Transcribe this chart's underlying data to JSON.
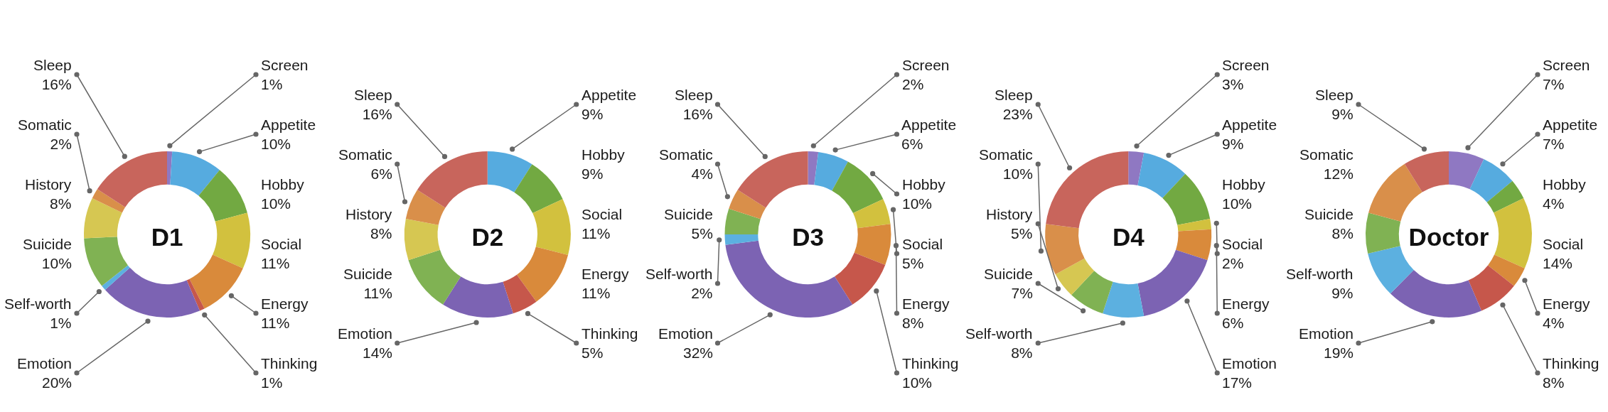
{
  "chart_data": [
    {
      "type": "donut",
      "title": "D1",
      "categories": [
        "Screen",
        "Appetite",
        "Hobby",
        "Social",
        "Energy",
        "Thinking",
        "Emotion",
        "Self-worth",
        "Suicide",
        "History",
        "Somatic",
        "Sleep"
      ],
      "values": [
        1,
        10,
        10,
        11,
        11,
        1,
        20,
        1,
        10,
        8,
        2,
        16
      ],
      "value_labels": [
        "1%",
        "10%",
        "10%",
        "11%",
        "11%",
        "1%",
        "20%",
        "1%",
        "10%",
        "8%",
        "2%",
        "16%"
      ],
      "colors": [
        "#8f78c2",
        "#56abdf",
        "#72a942",
        "#d2c13e",
        "#d98a3b",
        "#c6574b",
        "#7c63b3",
        "#5cb0e0",
        "#80b253",
        "#d6c752",
        "#d98f4a",
        "#c8655c"
      ]
    },
    {
      "type": "donut",
      "title": "D2",
      "categories": [
        "Appetite",
        "Hobby",
        "Social",
        "Energy",
        "Thinking",
        "Emotion",
        "Suicide",
        "History",
        "Somatic",
        "Sleep"
      ],
      "values": [
        9,
        9,
        11,
        11,
        5,
        14,
        11,
        8,
        6,
        16
      ],
      "value_labels": [
        "9%",
        "9%",
        "11%",
        "11%",
        "5%",
        "14%",
        "11%",
        "8%",
        "6%",
        "16%"
      ],
      "colors": [
        "#56abdf",
        "#72a942",
        "#d2c13e",
        "#d98a3b",
        "#c6574b",
        "#7c63b3",
        "#80b253",
        "#d6c752",
        "#d98f4a",
        "#c8655c"
      ]
    },
    {
      "type": "donut",
      "title": "D3",
      "categories": [
        "Screen",
        "Appetite",
        "Hobby",
        "Social",
        "Energy",
        "Thinking",
        "Emotion",
        "Self-worth",
        "Suicide",
        "Somatic",
        "Sleep"
      ],
      "values": [
        2,
        6,
        10,
        5,
        8,
        10,
        32,
        2,
        5,
        4,
        16
      ],
      "value_labels": [
        "2%",
        "6%",
        "10%",
        "5%",
        "8%",
        "10%",
        "32%",
        "2%",
        "5%",
        "4%",
        "16%"
      ],
      "colors": [
        "#8f78c2",
        "#56abdf",
        "#72a942",
        "#d2c13e",
        "#d98a3b",
        "#c6574b",
        "#7c63b3",
        "#5cb0e0",
        "#80b253",
        "#d98f4a",
        "#c8655c"
      ]
    },
    {
      "type": "donut",
      "title": "D4",
      "categories": [
        "Screen",
        "Appetite",
        "Hobby",
        "Social",
        "Energy",
        "Emotion",
        "Self-worth",
        "Suicide",
        "History",
        "Somatic",
        "Sleep"
      ],
      "values": [
        3,
        9,
        10,
        2,
        6,
        17,
        8,
        7,
        5,
        10,
        23
      ],
      "value_labels": [
        "3%",
        "9%",
        "10%",
        "2%",
        "6%",
        "17%",
        "8%",
        "7%",
        "5%",
        "10%",
        "23%"
      ],
      "colors": [
        "#8f78c2",
        "#56abdf",
        "#72a942",
        "#d2c13e",
        "#d98a3b",
        "#7c63b3",
        "#5cb0e0",
        "#80b253",
        "#d6c752",
        "#d98f4a",
        "#c8655c"
      ]
    },
    {
      "type": "donut",
      "title": "Doctor",
      "categories": [
        "Screen",
        "Appetite",
        "Hobby",
        "Social",
        "Energy",
        "Thinking",
        "Emotion",
        "Self-worth",
        "Suicide",
        "Somatic",
        "Sleep"
      ],
      "values": [
        7,
        7,
        4,
        14,
        4,
        8,
        19,
        9,
        8,
        12,
        9
      ],
      "value_labels": [
        "7%",
        "7%",
        "4%",
        "14%",
        "4%",
        "8%",
        "19%",
        "9%",
        "8%",
        "12%",
        "9%"
      ],
      "colors": [
        "#8f78c2",
        "#56abdf",
        "#72a942",
        "#d2c13e",
        "#d98a3b",
        "#c6574b",
        "#7c63b3",
        "#5cb0e0",
        "#80b253",
        "#d98f4a",
        "#c8655c"
      ]
    }
  ]
}
